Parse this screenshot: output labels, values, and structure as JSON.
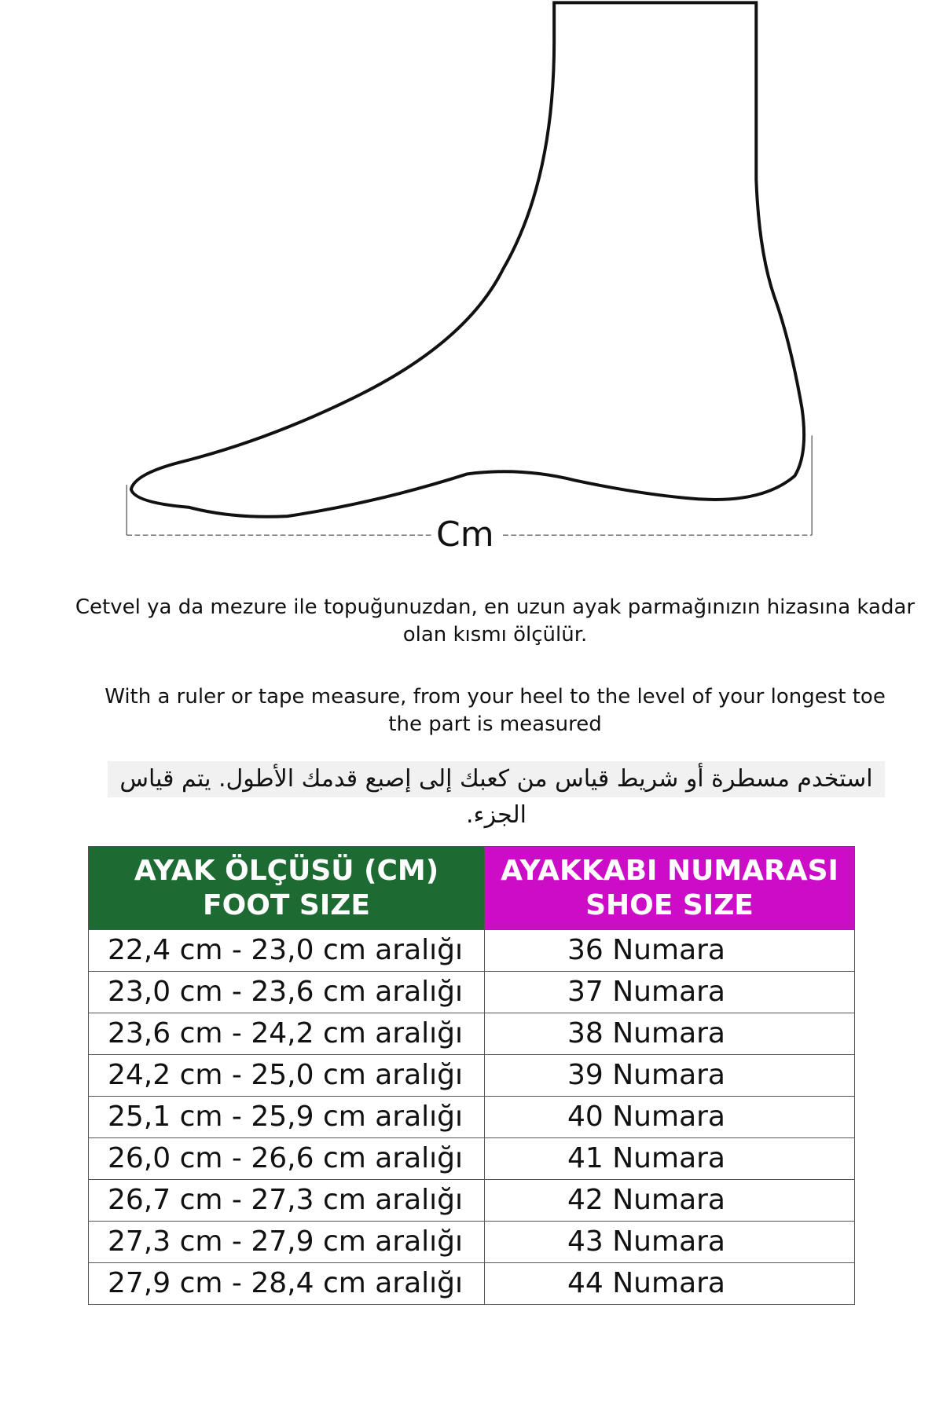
{
  "diagram": {
    "unit_label": "Cm"
  },
  "instructions": {
    "tr_line1": "Cetvel ya da mezure ile topuğunuzdan, en uzun ayak parmağınızın hizasına kadar",
    "tr_line2": "olan kısmı ölçülür.",
    "en_line1": "With a ruler or tape measure, from your heel to the level of your longest toe",
    "en_line2": "the part is measured",
    "ar": "استخدم مسطرة أو شريط قياس من كعبك إلى إصبع قدمك الأطول.  يتم قياس الجزء."
  },
  "table": {
    "header_foot_1": "AYAK ÖLÇÜSÜ (CM)",
    "header_foot_2": "FOOT SIZE",
    "header_shoe_1": "AYAKKABI NUMARASI",
    "header_shoe_2": "SHOE SIZE",
    "colors": {
      "foot_header": "#1d6b32",
      "shoe_header": "#cc0cc6"
    },
    "rows": [
      {
        "foot": "22,4 cm - 23,0 cm aralığı",
        "shoe": "36 Numara"
      },
      {
        "foot": "23,0 cm - 23,6 cm aralığı",
        "shoe": "37 Numara"
      },
      {
        "foot": "23,6 cm - 24,2 cm aralığı",
        "shoe": "38 Numara"
      },
      {
        "foot": "24,2 cm - 25,0 cm aralığı",
        "shoe": "39 Numara"
      },
      {
        "foot": "25,1 cm - 25,9 cm aralığı",
        "shoe": "40 Numara"
      },
      {
        "foot": "26,0 cm - 26,6 cm aralığı",
        "shoe": "41 Numara"
      },
      {
        "foot": "26,7 cm - 27,3 cm aralığı",
        "shoe": "42 Numara"
      },
      {
        "foot": "27,3 cm - 27,9 cm aralığı",
        "shoe": "43 Numara"
      },
      {
        "foot": "27,9 cm - 28,4 cm aralığı",
        "shoe": "44 Numara"
      }
    ]
  }
}
